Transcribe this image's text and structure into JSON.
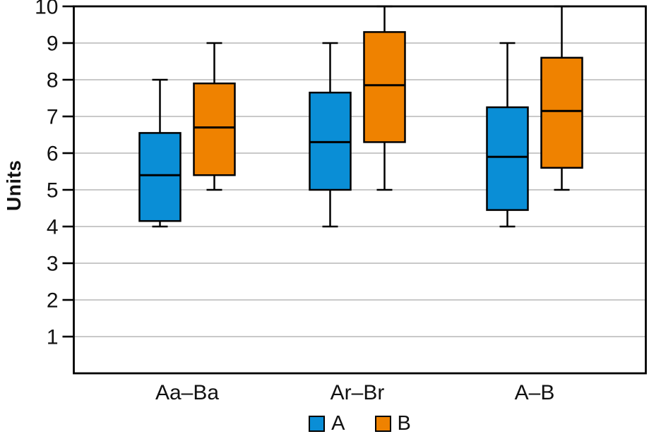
{
  "chart_data": {
    "type": "boxplot",
    "title": "",
    "ylabel": "Units",
    "xlabel": "",
    "ylim": [
      0,
      10
    ],
    "yticks": [
      1,
      2,
      3,
      4,
      5,
      6,
      7,
      8,
      9,
      10
    ],
    "grid": true,
    "gridline_color": "#c9c9c9",
    "frame_color": "#000000",
    "categories": [
      "Aa–Ba",
      "Ar–Br",
      "A–B"
    ],
    "series": [
      {
        "name": "A",
        "color": "#0a8ed6",
        "boxes": [
          {
            "min": 4.0,
            "q1": 4.15,
            "median": 5.4,
            "q3": 6.55,
            "max": 8.0
          },
          {
            "min": 4.0,
            "q1": 5.0,
            "median": 6.3,
            "q3": 7.65,
            "max": 9.0
          },
          {
            "min": 4.0,
            "q1": 4.45,
            "median": 5.9,
            "q3": 7.25,
            "max": 9.0
          }
        ]
      },
      {
        "name": "B",
        "color": "#ef8200",
        "boxes": [
          {
            "min": 5.0,
            "q1": 5.4,
            "median": 6.7,
            "q3": 7.9,
            "max": 9.0
          },
          {
            "min": 5.0,
            "q1": 6.3,
            "median": 7.85,
            "q3": 9.3,
            "max": 10.0
          },
          {
            "min": 5.0,
            "q1": 5.6,
            "median": 7.15,
            "q3": 8.6,
            "max": 10.0
          }
        ]
      }
    ],
    "legend_position": "bottom"
  }
}
